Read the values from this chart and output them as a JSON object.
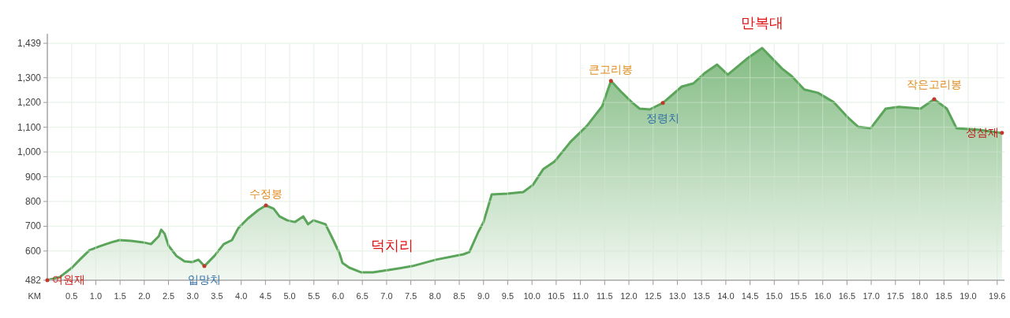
{
  "chart_data": {
    "type": "area",
    "xlabel": "KM",
    "x": [
      0.0,
      0.26,
      0.51,
      0.67,
      0.87,
      1.08,
      1.32,
      1.49,
      1.73,
      1.98,
      2.14,
      2.3,
      2.35,
      2.42,
      2.5,
      2.66,
      2.83,
      2.99,
      3.12,
      3.24,
      3.45,
      3.64,
      3.81,
      3.94,
      4.13,
      4.35,
      4.51,
      4.67,
      4.79,
      4.95,
      5.11,
      5.28,
      5.38,
      5.49,
      5.74,
      5.9,
      6.03,
      6.09,
      6.23,
      6.47,
      6.72,
      7.04,
      7.53,
      8.02,
      8.59,
      8.71,
      8.89,
      9.0,
      9.17,
      9.49,
      9.82,
      10.02,
      10.23,
      10.47,
      10.8,
      11.13,
      11.45,
      11.63,
      11.83,
      12.06,
      12.22,
      12.43,
      12.7,
      13.09,
      13.33,
      13.56,
      13.82,
      14.04,
      14.43,
      14.75,
      15.16,
      15.36,
      15.62,
      15.9,
      16.23,
      16.5,
      16.73,
      16.99,
      17.3,
      17.57,
      18.02,
      18.3,
      18.56,
      18.76,
      19.2,
      19.7
    ],
    "series": [
      {
        "color": "#5aa55a",
        "values": [
          482,
          495,
          533,
          565,
          603,
          619,
          635,
          644,
          641,
          635,
          628,
          660,
          686,
          670,
          622,
          581,
          558,
          555,
          565,
          539,
          581,
          628,
          644,
          692,
          730,
          765,
          784,
          771,
          740,
          724,
          717,
          740,
          708,
          724,
          708,
          644,
          590,
          552,
          533,
          514,
          514,
          523,
          539,
          565,
          587,
          596,
          676,
          717,
          829,
          832,
          838,
          867,
          930,
          962,
          1042,
          1105,
          1185,
          1287,
          1245,
          1201,
          1175,
          1172,
          1198,
          1264,
          1277,
          1318,
          1353,
          1312,
          1376,
          1420,
          1337,
          1306,
          1252,
          1239,
          1201,
          1143,
          1102,
          1096,
          1175,
          1182,
          1175,
          1213,
          1175,
          1096,
          1090,
          1077
        ]
      }
    ],
    "xlim": [
      0,
      19.75
    ],
    "xticks": [
      {
        "value": 0.5,
        "label": "0.5"
      },
      {
        "value": 1,
        "label": "1.0"
      },
      {
        "value": 1.5,
        "label": "1.5"
      },
      {
        "value": 2,
        "label": "2.0"
      },
      {
        "value": 2.5,
        "label": "2.5"
      },
      {
        "value": 3,
        "label": "3.0"
      },
      {
        "value": 3.5,
        "label": "3.5"
      },
      {
        "value": 4,
        "label": "4.0"
      },
      {
        "value": 4.5,
        "label": "4.5"
      },
      {
        "value": 5,
        "label": "5.0"
      },
      {
        "value": 5.5,
        "label": "5.5"
      },
      {
        "value": 6,
        "label": "6.0"
      },
      {
        "value": 6.5,
        "label": "6.5"
      },
      {
        "value": 7,
        "label": "7.0"
      },
      {
        "value": 7.5,
        "label": "7.5"
      },
      {
        "value": 8,
        "label": "8.0"
      },
      {
        "value": 8.5,
        "label": "8.5"
      },
      {
        "value": 9,
        "label": "9.0"
      },
      {
        "value": 9.5,
        "label": "9.5"
      },
      {
        "value": 10,
        "label": "10.0"
      },
      {
        "value": 10.5,
        "label": "10.5"
      },
      {
        "value": 11,
        "label": "11.0"
      },
      {
        "value": 11.5,
        "label": "11.5"
      },
      {
        "value": 12,
        "label": "12.0"
      },
      {
        "value": 12.5,
        "label": "12.5"
      },
      {
        "value": 13,
        "label": "13.0"
      },
      {
        "value": 13.5,
        "label": "13.5"
      },
      {
        "value": 14,
        "label": "14.0"
      },
      {
        "value": 14.5,
        "label": "14.5"
      },
      {
        "value": 15,
        "label": "15.0"
      },
      {
        "value": 15.5,
        "label": "15.5"
      },
      {
        "value": 16,
        "label": "16.0"
      },
      {
        "value": 16.5,
        "label": "16.5"
      },
      {
        "value": 17,
        "label": "17.0"
      },
      {
        "value": 17.5,
        "label": "17.5"
      },
      {
        "value": 18,
        "label": "18.0"
      },
      {
        "value": 18.5,
        "label": "18.5"
      },
      {
        "value": 19,
        "label": "19.0"
      },
      {
        "value": 19.6,
        "label": "19.6"
      }
    ],
    "ylim": [
      482,
      1439
    ],
    "yticks": [
      482,
      600,
      700,
      800,
      900,
      {
        "value": 1000,
        "label": "1,000"
      },
      {
        "value": 1100,
        "label": "1,100"
      },
      {
        "value": 1200,
        "label": "1,200"
      },
      {
        "value": 1300,
        "label": "1,300"
      },
      {
        "value": 1439,
        "label": "1,439"
      }
    ],
    "grid": true,
    "annotations": [
      {
        "text": "여원재",
        "x": 0.0,
        "y": 482
      },
      {
        "text": "입망치",
        "x": 3.24,
        "y": 539
      },
      {
        "text": "수정봉",
        "x": 4.51,
        "y": 784
      },
      "덕치리",
      {
        "text": "큰고리봉",
        "x": 11.63,
        "y": 1287
      },
      {
        "text": "정령치",
        "x": 12.7,
        "y": 1198
      },
      {
        "text": "만복대",
        "x": 14.75,
        "y": 1420
      },
      {
        "text": "작은고리봉",
        "x": 18.3,
        "y": 1213
      },
      {
        "text": "성삼재",
        "x": 19.7,
        "y": 1077
      }
    ]
  }
}
